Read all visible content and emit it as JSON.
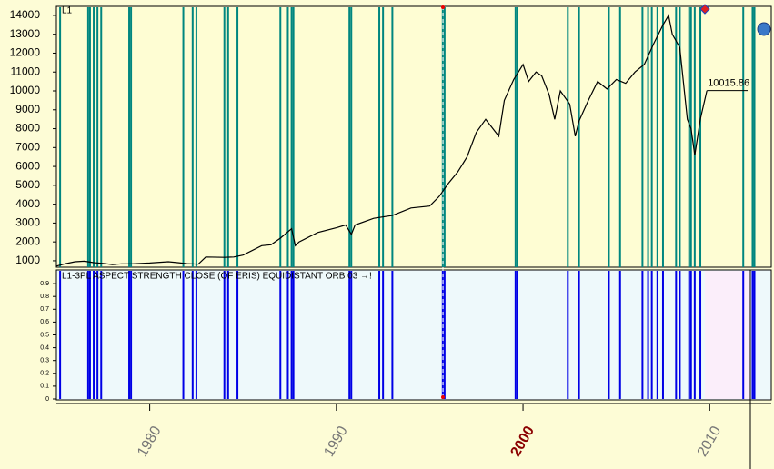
{
  "chart_data": [
    {
      "type": "line",
      "panel_label": "L1",
      "color": "#000000",
      "x": [
        1975,
        1975.5,
        1976,
        1976.5,
        1977,
        1977.5,
        1978,
        1978.5,
        1979,
        1980,
        1981,
        1981.5,
        1982,
        1982.6,
        1983,
        1984,
        1984.5,
        1985,
        1986,
        1986.5,
        1987,
        1987.6,
        1987.8,
        1988,
        1989,
        1990,
        1990.5,
        1990.8,
        1991,
        1992,
        1993,
        1994,
        1995,
        1995.5,
        1996,
        1996.5,
        1997,
        1997.5,
        1998,
        1998.7,
        1999,
        1999.5,
        2000,
        2000.3,
        2000.7,
        2001,
        2001.4,
        2001.7,
        2002,
        2002.5,
        2002.8,
        2003,
        2003.5,
        2004,
        2004.5,
        2005,
        2005.5,
        2006,
        2006.5,
        2007,
        2007.5,
        2007.8,
        2008,
        2008.4,
        2008.8,
        2009,
        2009.2,
        2009.5,
        2009.85
      ],
      "values": [
        720,
        850,
        950,
        980,
        900,
        860,
        800,
        840,
        840,
        880,
        950,
        900,
        850,
        820,
        1200,
        1180,
        1200,
        1300,
        1800,
        1850,
        2200,
        2700,
        1800,
        2000,
        2500,
        2750,
        2900,
        2400,
        2900,
        3250,
        3400,
        3800,
        3900,
        4400,
        5100,
        5700,
        6500,
        7800,
        8500,
        7600,
        9500,
        10600,
        11400,
        10500,
        11000,
        10800,
        9800,
        8500,
        10000,
        9300,
        7600,
        8400,
        9500,
        10500,
        10100,
        10600,
        10400,
        11000,
        11400,
        12500,
        13500,
        14000,
        13000,
        12300,
        8500,
        8000,
        6600,
        8500,
        10015.86
      ],
      "xlim": [
        1975,
        2013.3
      ],
      "ylim": [
        660,
        14430
      ],
      "yticks": [
        1000,
        2000,
        3000,
        4000,
        5000,
        6000,
        7000,
        8000,
        9000,
        10000,
        11000,
        12000,
        13000,
        14000
      ],
      "event_color": "#00867f"
    },
    {
      "type": "event",
      "panel_label": "L1-3PL ASPECT STRENGTH CLOSE (OF ERIS) EQUIDISTANT ORB 03 →!",
      "color": "#0000e6",
      "x": [
        1975.2,
        1976.7,
        1976.8,
        1977.0,
        1977.2,
        1977.4,
        1978.9,
        1979.0,
        1981.8,
        1982.3,
        1982.5,
        1984.0,
        1984.2,
        1984.7,
        1987.0,
        1987.4,
        1987.6,
        1987.7,
        1990.7,
        1990.8,
        1992.3,
        1992.5,
        1993.0,
        1995.7,
        1995.8,
        1999.6,
        1999.7,
        2002.4,
        2003.0,
        2004.6,
        2005.2,
        2006.4,
        2006.7,
        2006.9,
        2007.2,
        2007.5,
        2008.2,
        2008.4,
        2008.9,
        2009.0,
        2009.2,
        2009.5,
        2011.8,
        2012.3,
        2012.4
      ],
      "xlim": [
        1975,
        2013.3
      ],
      "ylim": [
        0,
        1
      ],
      "yticks": [
        0,
        0.1,
        0.2,
        0.3,
        0.4,
        0.5,
        0.6,
        0.7,
        0.8,
        0.9
      ],
      "xticks": [
        1980,
        1990,
        2000,
        2010
      ],
      "xtick_highlight": 2000,
      "highlight_color": "#8b0000"
    }
  ]
}
